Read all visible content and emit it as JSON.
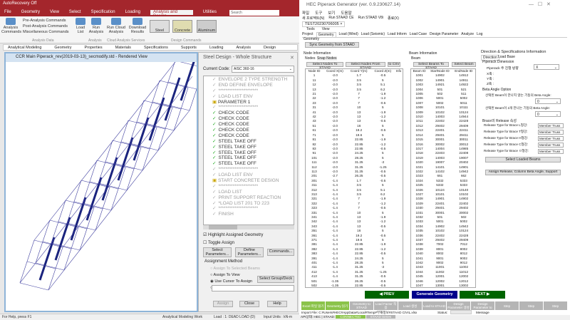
{
  "staad": {
    "title_bar": "AutoRecovery  Off",
    "menu": [
      "File",
      "Geometry",
      "View",
      "Select",
      "Specification",
      "Loading",
      "Analysis and Design",
      "Utilities"
    ],
    "active_menu": "Analysis and Design",
    "search_placeholder": "Search",
    "ribbon": {
      "analysis_commands": "Analysis Commands",
      "pre": "Pre-Analysis Commands",
      "post": "Post-Analysis Commands",
      "misc": "Miscellaneous Commands",
      "load_list": "Load List",
      "run_analysis": "Run Analysis",
      "run_cloud": "Run Cloud Analysis",
      "download": "Download Results",
      "steel": "Steel",
      "concrete": "Concrete",
      "aluminum": "Aluminum",
      "group_analysis_data": "Analysis Data",
      "group_analysis": "Analysis",
      "group_cloud": "Cloud Analysis Services",
      "group_design": "Design Commands"
    },
    "workflow_tabs": [
      "Analytical Modeling",
      "Geometry",
      "Properties",
      "Materials",
      "Specifications",
      "Supports",
      "Loading",
      "Analysis",
      "Design"
    ],
    "view_title": "CCR Main Piperack_rev(2019-03-13)_secmodify.std - Rendered View",
    "dialog": {
      "title": "Steel Design - Whole Structure",
      "code_label": "Current Code:",
      "code_value": "AISC 360-16",
      "tree": [
        {
          "t": "ENVELOPE 2 TYPE STRENGTH",
          "k": "dimchk"
        },
        {
          "t": "END DEFINE ENVELOPE",
          "k": "dimchk"
        },
        {
          "t": "**********************",
          "k": "dimchk"
        },
        {
          "t": "LOAD LIST ENV",
          "k": "dimchk"
        },
        {
          "t": "PARAMETER 1",
          "k": "fold"
        },
        {
          "t": "**********************",
          "k": "dimchk"
        },
        {
          "t": "CHECK CODE",
          "k": "chk"
        },
        {
          "t": "CHECK CODE",
          "k": "chk"
        },
        {
          "t": "CHECK CODE",
          "k": "chk"
        },
        {
          "t": "CHECK CODE",
          "k": "chk"
        },
        {
          "t": "CHECK CODE",
          "k": "chk"
        },
        {
          "t": "STEEL TAKE OFF",
          "k": "chk"
        },
        {
          "t": "STEEL TAKE OFF",
          "k": "chk"
        },
        {
          "t": "STEEL TAKE OFF",
          "k": "chk"
        },
        {
          "t": "STEEL TAKE OFF",
          "k": "chk"
        },
        {
          "t": "STEEL TAKE OFF",
          "k": "chk"
        },
        {
          "t": "**********************",
          "k": "dimchk"
        },
        {
          "t": "LOAD LIST ENV",
          "k": "dimchk"
        },
        {
          "t": "START CONCRETE DESIGN",
          "k": "fold dim"
        },
        {
          "t": "**********************",
          "k": "dimchk"
        },
        {
          "t": "LOAD LIST",
          "k": "dimchk"
        },
        {
          "t": "PRINT SUPPORT REACTION",
          "k": "dimchk"
        },
        {
          "t": "*LOAD LIST 201 TO 223",
          "k": "dimchk"
        },
        {
          "t": "**********************",
          "k": "dimchk"
        },
        {
          "t": "FINISH",
          "k": "dimchk"
        }
      ],
      "highlight": "Highlight Assigned Geometry",
      "highlight_checked": true,
      "toggle": "Toggle Assign",
      "toggle_checked": false,
      "select_params": "Select Parameters...",
      "define_params": "Define Parameters...",
      "commands": "Commands...",
      "assign_method": "Assignment Method",
      "radio": [
        "Assign To Selected Beams",
        "Assign To View",
        "Use Cursor To Assign",
        "Assign To Edit List"
      ],
      "radio_selected": "Use Cursor To Assign",
      "select_group": "Select Group/Deck",
      "assign": "Assign",
      "close": "Close",
      "help": "Help"
    },
    "status": {
      "help": "For Help, press F1",
      "mode": "Analytical Modeling Work",
      "load": "Load : 1: DEAD LOAD (D)",
      "units": "Input Units : kN-m"
    }
  },
  "hec": {
    "title": "HEC Piperack Generator (ver. 0.9.230627.14)",
    "menu": [
      "파일",
      "도구",
      "보기",
      "도움말"
    ],
    "toolbar": [
      "새 프로젝트(N)",
      "Run STAAD CE",
      "Run STAAD V8i",
      "종료(X)"
    ],
    "doc_tab": "TEST20230706005",
    "subtabs": [
      "Tools",
      "View"
    ],
    "tabs": [
      "Project",
      "Geometry",
      "Load (Wind)",
      "Load (Seismic)",
      "Load Inform",
      "Load Case",
      "Design Parameter",
      "Analyze",
      "Log"
    ],
    "active_tab": "Geometry",
    "geometry_label": "Geometry",
    "sync": "Sync Geometry from STAAD",
    "node": {
      "title": "Node Information",
      "tabs": [
        "Nodes",
        "Snap Nodes"
      ],
      "btn1": "Select Nodes To STAAD",
      "btn2": "Select Nodes From STAAD",
      "btn3": "to CSV",
      "headers": [
        "Node ID",
        "Coord X(m)",
        "Coord Y(m)",
        "Coord Z(m)",
        "Info"
      ],
      "rows": [
        [
          "1",
          "-2.0",
          "1.7",
          "-0.5"
        ],
        [
          "11",
          "-2.0",
          "3.5",
          "5"
        ],
        [
          "12",
          "-2.0",
          "3.5",
          "5.1"
        ],
        [
          "13",
          "-2.0",
          "3.5",
          "6.2"
        ],
        [
          "21",
          "-2.0",
          "7",
          "-1.9"
        ],
        [
          "22",
          "-2.0",
          "7",
          "-1.2"
        ],
        [
          "23",
          "-2.0",
          "7",
          "-0.5"
        ],
        [
          "31",
          "-2.0",
          "10",
          "5"
        ],
        [
          "41",
          "-2.0",
          "13",
          "-1.9"
        ],
        [
          "42",
          "-2.0",
          "13",
          "-1.2"
        ],
        [
          "43",
          "-2.0",
          "13",
          "-0.5"
        ],
        [
          "51",
          "-2.0",
          "16",
          "5"
        ],
        [
          "61",
          "-2.0",
          "19.2",
          "-0.5"
        ],
        [
          "71",
          "-2.0",
          "19.6",
          "5"
        ],
        [
          "81",
          "-2.0",
          "22.85",
          "-1.9"
        ],
        [
          "82",
          "-2.0",
          "22.85",
          "-1.2"
        ],
        [
          "83",
          "-2.0",
          "22.85",
          "-0.5"
        ],
        [
          "91",
          "-2.0",
          "24.25",
          "5"
        ],
        [
          "101",
          "-2.0",
          "28.25",
          "5"
        ],
        [
          "111",
          "-2.0",
          "31.25",
          "-2"
        ],
        [
          "112",
          "-2.0",
          "31.25",
          "-1.25"
        ],
        [
          "113",
          "-2.0",
          "31.25",
          "-0.5"
        ],
        [
          "201",
          "-2.7",
          "26.25",
          "-0.5"
        ],
        [
          "301",
          "-1.4",
          "1.7",
          "-0.5"
        ],
        [
          "311",
          "-1.4",
          "3.5",
          "5"
        ],
        [
          "312",
          "-1.4",
          "3.5",
          "5.1"
        ],
        [
          "313",
          "-1.4",
          "3.5",
          "6.2"
        ],
        [
          "321",
          "-1.4",
          "7",
          "-1.9"
        ],
        [
          "322",
          "-1.4",
          "7",
          "-1.2"
        ],
        [
          "323",
          "-1.4",
          "7",
          "-0.5"
        ],
        [
          "331",
          "-1.4",
          "10",
          "5"
        ],
        [
          "341",
          "-1.4",
          "13",
          "-1.9"
        ],
        [
          "342",
          "-1.4",
          "13",
          "-1.2"
        ],
        [
          "343",
          "-1.4",
          "13",
          "-0.5"
        ],
        [
          "351",
          "-1.4",
          "16",
          "5"
        ],
        [
          "361",
          "-1.4",
          "19.2",
          "-0.5"
        ],
        [
          "371",
          "-1.4",
          "19.6",
          "5"
        ],
        [
          "381",
          "-1.4",
          "22.85",
          "-1.9"
        ],
        [
          "382",
          "-1.4",
          "22.85",
          "-1.2"
        ],
        [
          "383",
          "-1.4",
          "22.85",
          "-0.5"
        ],
        [
          "391",
          "-1.4",
          "24.25",
          "5"
        ],
        [
          "401",
          "-1.4",
          "28.25",
          "5"
        ],
        [
          "411",
          "-1.4",
          "31.25",
          "-2"
        ],
        [
          "412",
          "-1.4",
          "31.25",
          "-1.25"
        ],
        [
          "413",
          "-1.4",
          "31.25",
          "-0.5"
        ],
        [
          "501",
          "-1.35",
          "26.25",
          "-0.5"
        ],
        [
          "502",
          "-1.35",
          "22.85",
          "-0.5"
        ],
        [
          "601",
          "0",
          "0.5",
          "-0.5"
        ],
        [
          "611",
          "0",
          "3.5",
          "5"
        ],
        [
          "621",
          "0",
          "7",
          "-1.9"
        ],
        [
          "631",
          "0",
          "10",
          "5"
        ],
        [
          "641",
          "0",
          "13",
          "-1.9"
        ]
      ]
    },
    "beam": {
      "title": "Beam Information",
      "tabs": [
        "Beam"
      ],
      "btn1": "Select Beams To STAAD",
      "btn2": "Select Beam",
      "headers": [
        "Beam ID",
        "StartNode ID",
        "EndNode ID"
      ],
      "rows": [
        [
          "1001",
          "14902",
          "14912"
        ],
        [
          "1002",
          "14901",
          "14911"
        ],
        [
          "1003",
          "14921",
          "14922"
        ],
        [
          "1004",
          "501",
          "521"
        ],
        [
          "1005",
          "502",
          "511"
        ],
        [
          "1006",
          "5001",
          "5002"
        ],
        [
          "1007",
          "5002",
          "5011"
        ],
        [
          "1008",
          "10101",
          "10111"
        ],
        [
          "1009",
          "10102",
          "10124"
        ],
        [
          "1010",
          "14003",
          "14944"
        ],
        [
          "1011",
          "22402",
          "22428"
        ],
        [
          "1012",
          "29402",
          "29409"
        ],
        [
          "1013",
          "22401",
          "22411"
        ],
        [
          "1014",
          "29401",
          "29411"
        ],
        [
          "1015",
          "30001",
          "30011"
        ],
        [
          "1016",
          "30002",
          "30012"
        ],
        [
          "1017",
          "14004",
          "14985"
        ],
        [
          "1018",
          "22403",
          "22408"
        ],
        [
          "1019",
          "14003",
          "19007"
        ],
        [
          "1020",
          "19007",
          "20402"
        ],
        [
          "1021",
          "14101",
          "14901"
        ],
        [
          "1022",
          "14102",
          "14942"
        ],
        [
          "1023",
          "661",
          "662"
        ],
        [
          "1024",
          "5332",
          "5333"
        ],
        [
          "1025",
          "5332",
          "5333"
        ],
        [
          "1026",
          "10124",
          "10140"
        ],
        [
          "1027",
          "10101",
          "10102"
        ],
        [
          "1028",
          "14901",
          "14902"
        ],
        [
          "1029",
          "22401",
          "22402"
        ],
        [
          "1030",
          "29401",
          "29402"
        ],
        [
          "1031",
          "30001",
          "30002"
        ],
        [
          "1032",
          "501",
          "502"
        ],
        [
          "1033",
          "5001",
          "5002"
        ],
        [
          "1034",
          "14902",
          "14942"
        ],
        [
          "1035",
          "10102",
          "10124"
        ],
        [
          "1036",
          "22402",
          "22428"
        ],
        [
          "1037",
          "29402",
          "29409"
        ],
        [
          "1038",
          "7002",
          "7012"
        ],
        [
          "1039",
          "8001",
          "8002"
        ],
        [
          "1040",
          "8002",
          "8012"
        ],
        [
          "1041",
          "9001",
          "9002"
        ],
        [
          "1042",
          "9002",
          "9012"
        ],
        [
          "1043",
          "11001",
          "11002"
        ],
        [
          "1044",
          "11002",
          "11012"
        ],
        [
          "1045",
          "12001",
          "12002"
        ],
        [
          "1046",
          "12002",
          "12012"
        ],
        [
          "1047",
          "13001",
          "13002"
        ],
        [
          "1048",
          "13002",
          "13012"
        ],
        [
          "1049",
          "15001",
          "15002"
        ],
        [
          "1050",
          "15002",
          "15012"
        ],
        [
          "1051",
          "16001",
          "16002"
        ],
        [
          "1052",
          "16002",
          "16012"
        ]
      ]
    },
    "direction": {
      "title": "Direction & Specifications Information",
      "tabs": [
        "Direction",
        "Load Base"
      ],
      "pipe_dim": "Piperack Dimension",
      "pipe_dir_label": "Piperack 주 진행 방향",
      "pipe_dir_value": "X",
      "x_axis": "X축 :",
      "y_axis": "Y축 :",
      "z_axis": "Z축 :",
      "beta": "Beta Angle Option",
      "beta1_label": "선택된 Beam이 만나지 않는 기둥의 Beta Angle:",
      "beta1_value": "0",
      "beta2_label": "선택된 Beam이 2개 만나는 기둥의 Beta Angle:",
      "beta2_value": "0",
      "release": "Brace의 Release 속성",
      "release_rows": [
        {
          "label": "Release Type for Brace L형강:",
          "value": "Member Truss"
        },
        {
          "label": "Release Type for Brace T형강:",
          "value": "Member Truss"
        },
        {
          "label": "Release Type for Brace H형강:",
          "value": "Member Truss"
        },
        {
          "label": "Release Type for Brace C형강:",
          "value": "Member Truss"
        },
        {
          "label": "Release Type for Brace ㅁ형강:",
          "value": "Member Truss"
        }
      ],
      "select_loaded": "Select Loaded Beams",
      "assign_release": "Assign Release, Column Beta Angle, Support"
    },
    "nav": {
      "prev": "◀ PREV",
      "generate": "Generate Geometry",
      "next": "NEXT ▶"
    },
    "steps": [
      {
        "label": "Excel 파일 읽기",
        "state": "done"
      },
      {
        "label": "Geometry 읽기",
        "state": "done"
      },
      {
        "label": "Geometry to STAAD",
        "state": "off"
      },
      {
        "label": "Load Factor 적용",
        "state": "off"
      },
      {
        "label": "Load 생성",
        "state": "off"
      },
      {
        "label": "Load to STAAD",
        "state": "off"
      },
      {
        "label": "Design Parameter 생성",
        "state": "off"
      },
      {
        "label": "Design Parameter to",
        "state": "off"
      },
      {
        "label": "Step",
        "state": "off"
      },
      {
        "label": "Step",
        "state": "off"
      },
      {
        "label": "Step",
        "state": "off"
      }
    ],
    "import_file": "Import File: C:#Users#HEC#AppData#Local#Temp#부재정보#STAAD CIVIL.xlsx",
    "status_label": "Status:",
    "message_label": "Message",
    "footer": {
      "mode": "API상태: HEC",
      "staad": "STAAD:",
      "staad_connected": "CONNECTED",
      "staad_other": "STAAD Series"
    },
    "colors": {
      "nav_green": "#006400",
      "nav_blue": "#00008b",
      "step_done": "#8bc34a",
      "step_off": "#b5b5b5",
      "staad_red": "#a4262c"
    }
  }
}
